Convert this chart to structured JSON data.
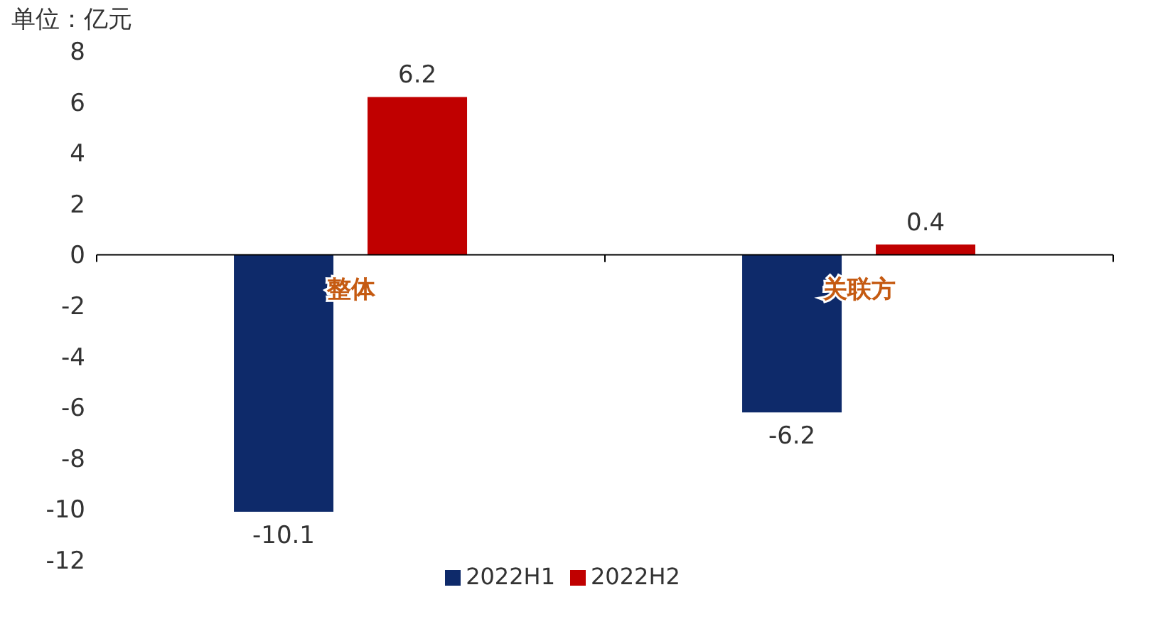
{
  "chart_data": {
    "type": "bar",
    "ylabel": "单位：亿元",
    "categories": [
      "整体",
      "关联方"
    ],
    "series": [
      {
        "name": "2022H1",
        "color": "#0e2a6a",
        "values": [
          -10.1,
          -6.2
        ]
      },
      {
        "name": "2022H2",
        "color": "#c00000",
        "values": [
          6.2,
          0.4
        ]
      }
    ],
    "ylim": [
      -12,
      8
    ],
    "yticks": [
      -12,
      -10,
      -8,
      -6,
      -4,
      -2,
      0,
      2,
      4,
      6,
      8
    ],
    "grid": false,
    "legend": "bottom",
    "data_labels": true
  }
}
